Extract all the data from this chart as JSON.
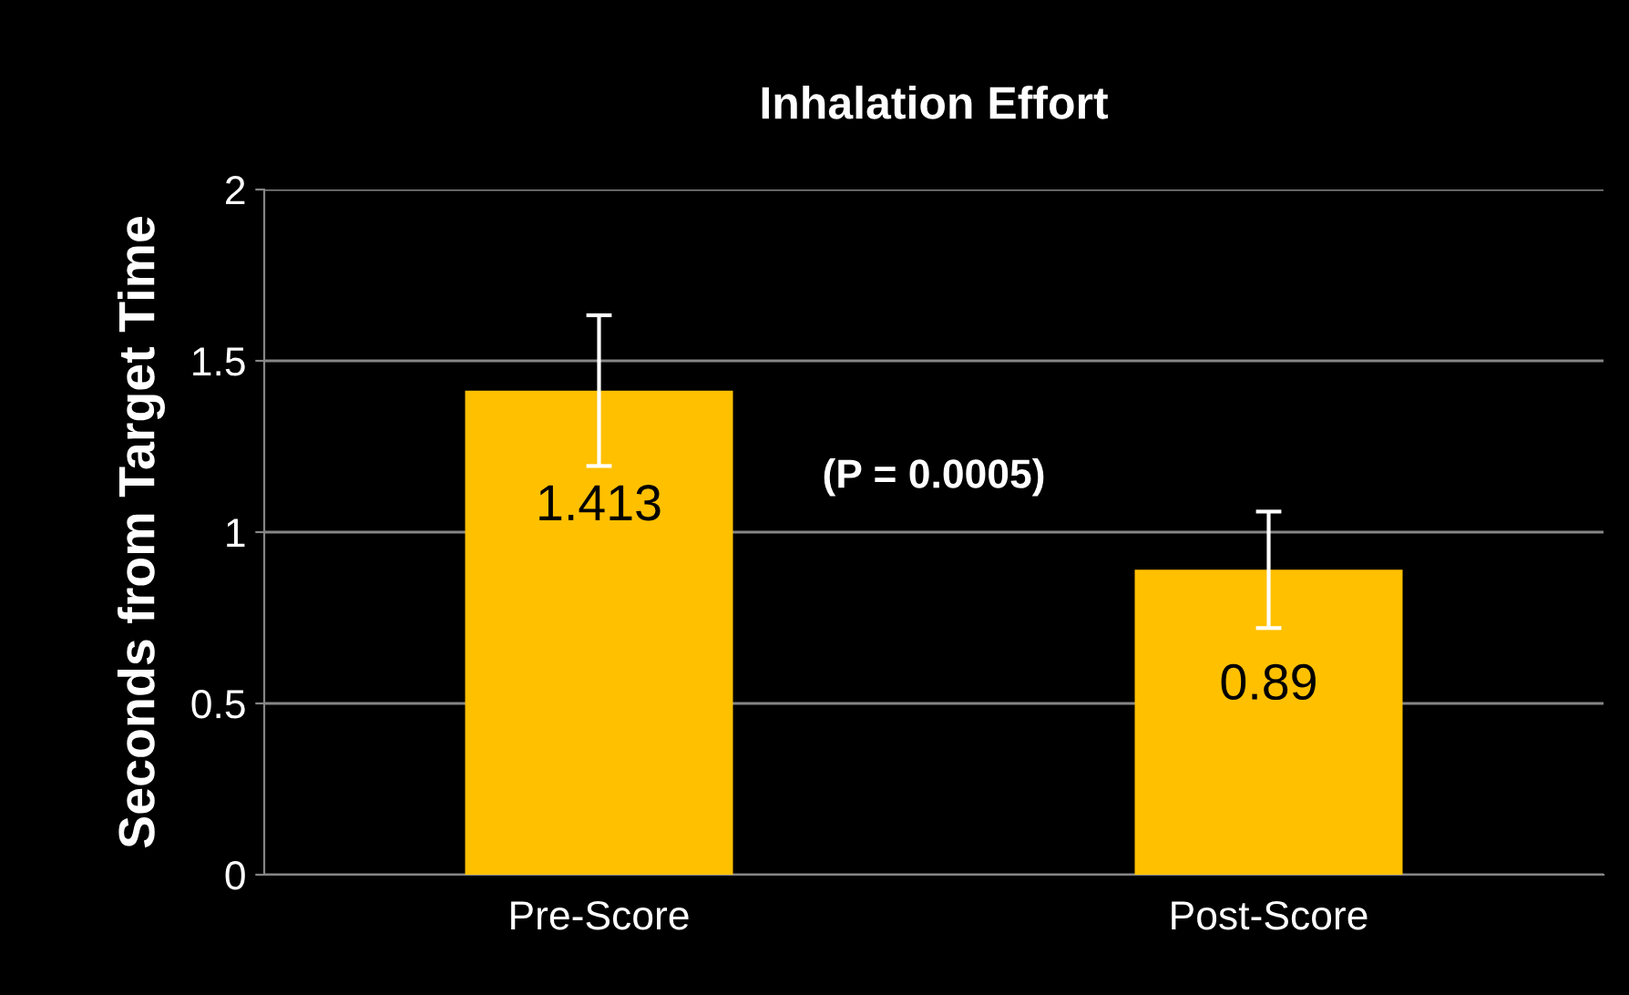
{
  "chart_data": {
    "type": "bar",
    "title": "Inhalation Effort",
    "ylabel": "Seconds from Target Time",
    "categories": [
      "Pre-Score",
      "Post-Score"
    ],
    "values": [
      1.413,
      0.89
    ],
    "errors": [
      0.22,
      0.17
    ],
    "color": "#ffc000",
    "data_labels": true,
    "annotations": [
      "(P = 0.0005)"
    ],
    "ylim": [
      0,
      2
    ],
    "yticks": [
      0,
      0.5,
      1,
      1.5,
      2
    ],
    "grid": "y",
    "legend": false
  }
}
